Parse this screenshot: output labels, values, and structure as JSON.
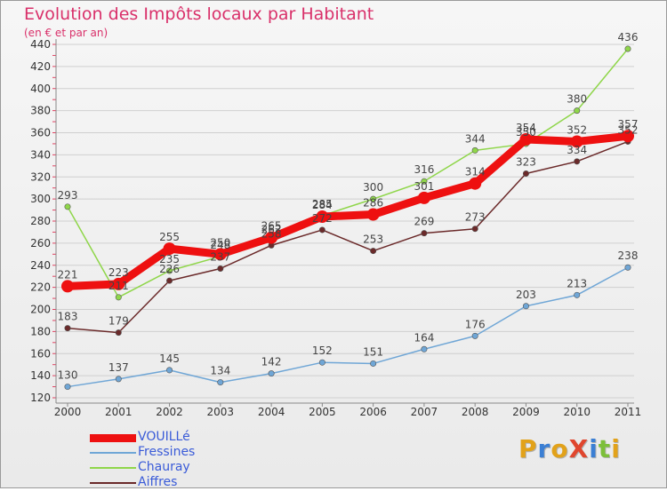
{
  "title": "Evolution des Impôts locaux par Habitant",
  "subtitle": "(en € et par an)",
  "chart_data": {
    "type": "line",
    "title": "Evolution des Impôts locaux par Habitant",
    "subtitle": "(en € et par an)",
    "xlabel": "",
    "ylabel": "",
    "x": [
      "2000",
      "2001",
      "2002",
      "2003",
      "2004",
      "2005",
      "2006",
      "2007",
      "2008",
      "2009",
      "2010",
      "2011"
    ],
    "ylim": [
      120,
      440
    ],
    "yticks": [
      120,
      140,
      160,
      180,
      200,
      220,
      240,
      260,
      280,
      300,
      320,
      340,
      360,
      380,
      400,
      420,
      440
    ],
    "grid": "horizontal",
    "legend": "bottom-left",
    "series": [
      {
        "name": "VOUILLé",
        "color": "#ee1010",
        "values": [
          221,
          223,
          255,
          250,
          265,
          284,
          286,
          301,
          314,
          354,
          352,
          357
        ]
      },
      {
        "name": "Fressines",
        "color": "#6fa6d6",
        "values": [
          130,
          137,
          145,
          134,
          142,
          152,
          151,
          164,
          176,
          203,
          213,
          238
        ]
      },
      {
        "name": "Chauray",
        "color": "#8fd64a",
        "values": [
          293,
          211,
          235,
          248,
          262,
          285,
          300,
          316,
          344,
          350,
          380,
          436
        ]
      },
      {
        "name": "Aiffres",
        "color": "#6b2a2a",
        "values": [
          183,
          179,
          226,
          237,
          258,
          272,
          253,
          269,
          273,
          323,
          334,
          352
        ]
      }
    ]
  },
  "logo": {
    "text": "ProXiti",
    "letters": [
      {
        "ch": "P",
        "color": "#e2a21a"
      },
      {
        "ch": "r",
        "color": "#3b7fd4"
      },
      {
        "ch": "o",
        "color": "#e2a21a"
      },
      {
        "ch": "X",
        "color": "#e0462e"
      },
      {
        "ch": "i",
        "color": "#3b7fd4"
      },
      {
        "ch": "t",
        "color": "#7cbf3a"
      },
      {
        "ch": "i",
        "color": "#e2a21a"
      }
    ]
  }
}
